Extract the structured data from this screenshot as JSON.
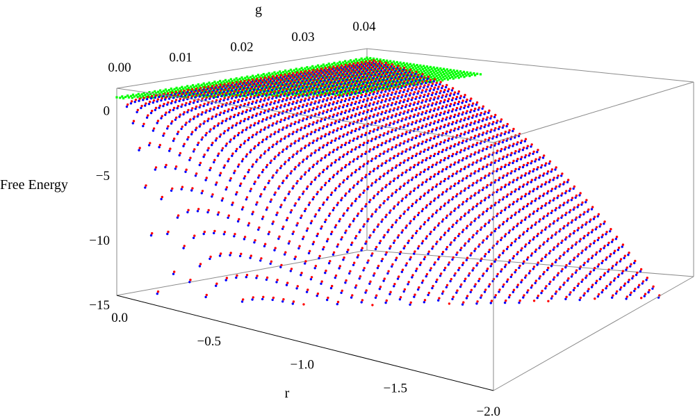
{
  "chart_data": {
    "type": "scatter3d",
    "title": "",
    "axes": {
      "x": {
        "label": "r",
        "range": [
          0.0,
          -2.0
        ],
        "ticks": [
          "0.0",
          "−0.5",
          "−1.0",
          "−1.5",
          "−2.0"
        ]
      },
      "y": {
        "label": "g",
        "range": [
          0.0,
          0.04
        ],
        "ticks": [
          "0.00",
          "0.01",
          "0.02",
          "0.03",
          "0.04"
        ]
      },
      "z": {
        "label": "Free Energy",
        "range": [
          -15,
          1
        ],
        "ticks": [
          "0",
          "−5",
          "−10",
          "−15"
        ]
      }
    },
    "series": [
      {
        "color": "#00ff00",
        "approx_surface": "F ≈ 0 (flat sheet at the top, visible near small |r|)"
      },
      {
        "color": "#0000ff",
        "approx_surface": "F ≈ -r²/(4g) clipped at the bottom of the box"
      },
      {
        "color": "#ff0000",
        "approx_surface": "F ≈ -r²/(4g) clipped at the bottom of the box, drawn above the blue points"
      }
    ],
    "surface_samples": [
      {
        "r": 0.0,
        "g": 0.04,
        "F": 0
      },
      {
        "r": -1.0,
        "g": 0.04,
        "F": -6.25
      },
      {
        "r": -1.5,
        "g": 0.04,
        "F": -14.1
      },
      {
        "r": -2.0,
        "g": 0.04,
        "F": -15
      },
      {
        "r": -0.5,
        "g": 0.01,
        "F": -6.25
      },
      {
        "r": -0.5,
        "g": 0.005,
        "F": -12.5
      }
    ],
    "grid": false,
    "legend": "none"
  }
}
